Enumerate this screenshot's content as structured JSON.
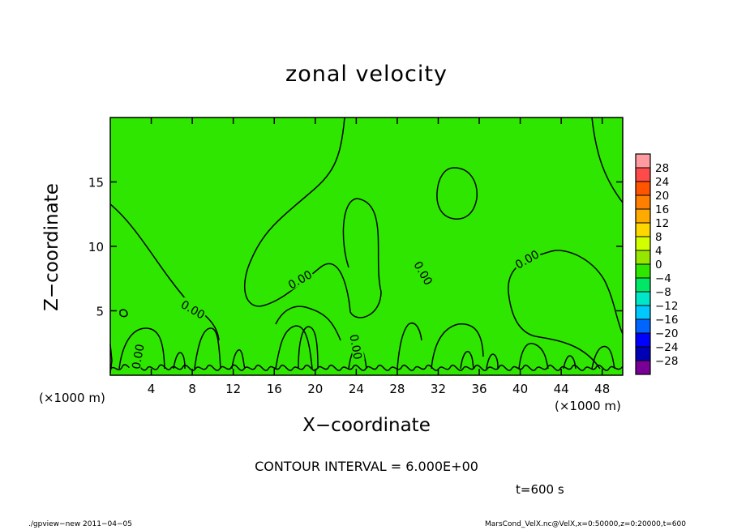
{
  "chart_data": {
    "type": "heatmap",
    "title": "zonal velocity",
    "xlabel": "X−coordinate",
    "ylabel": "Z−coordinate",
    "x_unit_label": "(×1000 m)",
    "xlim": [
      0,
      50
    ],
    "ylim": [
      0,
      20
    ],
    "x_ticks": [
      4,
      8,
      12,
      16,
      20,
      24,
      28,
      32,
      36,
      40,
      44,
      48
    ],
    "y_ticks": [
      5,
      10,
      15
    ],
    "contour_label": "0.00",
    "contour_interval_text": "CONTOUR INTERVAL = 6.000E+00",
    "time_text": "t=600 s",
    "field_value_dominant": 0,
    "colorbar": {
      "levels": [
        "28",
        "24",
        "20",
        "16",
        "12",
        "8",
        "4",
        "0",
        "−4",
        "−8",
        "−12",
        "−16",
        "−20",
        "−24",
        "−28"
      ],
      "colors": [
        "#ff9aa0",
        "#ff4a4a",
        "#ff5500",
        "#ff7f00",
        "#ffaa00",
        "#ffd700",
        "#d2ff00",
        "#96e600",
        "#2ee600",
        "#00e665",
        "#00e6c8",
        "#00c8ff",
        "#0064ff",
        "#0000ff",
        "#0000b4",
        "#780096"
      ]
    }
  },
  "footer": {
    "left": "./gpview−new   2011−04−05",
    "right": "MarsCond_VelX.nc@VelX,x=0:50000,z=0:20000,t=600"
  }
}
